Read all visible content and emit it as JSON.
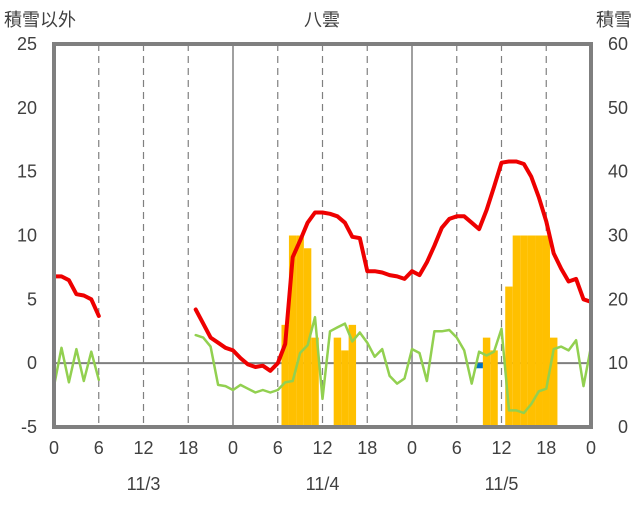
{
  "chart_data": {
    "type": "bar+line",
    "title": "八雲",
    "left_axis_label": "積雪以外",
    "right_axis_label": "積雪",
    "left_ylim": [
      -5,
      25
    ],
    "left_ticks": [
      -5,
      0,
      5,
      10,
      15,
      20,
      25
    ],
    "right_ylim": [
      0,
      60
    ],
    "right_ticks": [
      0,
      10,
      20,
      30,
      40,
      50,
      60
    ],
    "x_range_hours": [
      0,
      72
    ],
    "x_tick_labels": [
      "0",
      "6",
      "12",
      "18",
      "0",
      "6",
      "12",
      "18",
      "0",
      "6",
      "12",
      "18",
      "0"
    ],
    "date_labels": [
      "11/3",
      "11/4",
      "11/5"
    ],
    "grid": "vertical every 6h (dashed at 6/12/18h, solid at day boundaries)",
    "colors": {
      "red_line": "#ee0000",
      "green_line": "#92d050",
      "orange_bar": "#ffc000",
      "blue_bar": "#0070c0",
      "purple_line": "#7030a0",
      "frame": "#7f7f7f"
    },
    "red_series": {
      "axis": "left",
      "segments": [
        [
          [
            0,
            6.8
          ],
          [
            1,
            6.8
          ],
          [
            2,
            6.5
          ],
          [
            3,
            5.4
          ],
          [
            4,
            5.3
          ],
          [
            5,
            5.0
          ],
          [
            6,
            3.7
          ]
        ],
        [
          [
            19,
            4.2
          ],
          [
            20,
            3.1
          ],
          [
            21,
            2.0
          ],
          [
            22,
            1.6
          ],
          [
            23,
            1.2
          ],
          [
            24,
            1.0
          ],
          [
            25,
            0.4
          ],
          [
            26,
            -0.1
          ],
          [
            27,
            -0.3
          ],
          [
            28,
            -0.2
          ],
          [
            29,
            -0.6
          ],
          [
            30,
            0.0
          ],
          [
            31,
            1.5
          ],
          [
            32,
            8.3
          ],
          [
            33,
            9.6
          ],
          [
            34,
            11.0
          ],
          [
            35,
            11.8
          ],
          [
            36,
            11.8
          ],
          [
            37,
            11.7
          ],
          [
            38,
            11.5
          ],
          [
            39,
            11.0
          ],
          [
            40,
            9.9
          ],
          [
            41,
            9.8
          ],
          [
            42,
            7.2
          ],
          [
            43,
            7.2
          ],
          [
            44,
            7.1
          ],
          [
            45,
            6.9
          ],
          [
            46,
            6.8
          ],
          [
            47,
            6.6
          ],
          [
            48,
            7.2
          ],
          [
            49,
            6.9
          ],
          [
            50,
            7.9
          ],
          [
            51,
            9.2
          ],
          [
            52,
            10.6
          ],
          [
            53,
            11.3
          ],
          [
            54,
            11.5
          ],
          [
            55,
            11.5
          ],
          [
            56,
            11.0
          ],
          [
            57,
            10.5
          ],
          [
            58,
            12.0
          ],
          [
            59,
            13.8
          ],
          [
            60,
            15.7
          ],
          [
            61,
            15.8
          ],
          [
            62,
            15.8
          ],
          [
            63,
            15.6
          ],
          [
            64,
            14.6
          ],
          [
            65,
            13.0
          ],
          [
            66,
            11.1
          ],
          [
            67,
            8.6
          ],
          [
            68,
            7.4
          ],
          [
            69,
            6.4
          ],
          [
            70,
            6.6
          ],
          [
            71,
            5.0
          ],
          [
            72,
            4.8
          ]
        ]
      ]
    },
    "green_series": {
      "axis": "left",
      "segments": [
        [
          [
            0,
            -1.8
          ],
          [
            1,
            1.2
          ],
          [
            2,
            -1.5
          ],
          [
            3,
            1.1
          ],
          [
            4,
            -1.4
          ],
          [
            5,
            0.9
          ],
          [
            6,
            -1.3
          ]
        ],
        [
          [
            19,
            2.2
          ],
          [
            20,
            2.0
          ],
          [
            21,
            1.3
          ],
          [
            22,
            -1.7
          ],
          [
            23,
            -1.8
          ],
          [
            24,
            -2.1
          ],
          [
            25,
            -1.7
          ],
          [
            26,
            -2.0
          ],
          [
            27,
            -2.3
          ],
          [
            28,
            -2.1
          ],
          [
            29,
            -2.3
          ],
          [
            30,
            -2.1
          ],
          [
            31,
            -1.5
          ],
          [
            32,
            -1.4
          ],
          [
            33,
            0.8
          ],
          [
            34,
            1.4
          ],
          [
            35,
            3.6
          ],
          [
            36,
            -2.8
          ],
          [
            37,
            2.5
          ],
          [
            38,
            2.8
          ],
          [
            39,
            3.1
          ],
          [
            40,
            1.7
          ],
          [
            41,
            2.4
          ],
          [
            42,
            1.6
          ],
          [
            43,
            0.5
          ],
          [
            44,
            1.1
          ],
          [
            45,
            -1.0
          ],
          [
            46,
            -1.6
          ],
          [
            47,
            -1.2
          ],
          [
            48,
            1.1
          ],
          [
            49,
            0.8
          ],
          [
            50,
            -1.4
          ],
          [
            51,
            2.5
          ],
          [
            52,
            2.5
          ],
          [
            53,
            2.6
          ],
          [
            54,
            2.0
          ],
          [
            55,
            1.0
          ],
          [
            56,
            -1.6
          ],
          [
            57,
            0.9
          ],
          [
            58,
            0.6
          ],
          [
            59,
            0.9
          ],
          [
            60,
            2.7
          ],
          [
            61,
            -3.7
          ],
          [
            62,
            -3.7
          ],
          [
            63,
            -3.9
          ],
          [
            64,
            -3.2
          ],
          [
            65,
            -2.2
          ],
          [
            66,
            -2.0
          ],
          [
            67,
            1.1
          ],
          [
            68,
            1.3
          ],
          [
            69,
            1.0
          ],
          [
            70,
            1.8
          ],
          [
            71,
            -1.8
          ],
          [
            72,
            1.3
          ]
        ]
      ]
    },
    "snow_bars": {
      "axis": "right",
      "hours": [
        31,
        32,
        33,
        34,
        35,
        38,
        39,
        40,
        58,
        59,
        61,
        62,
        63,
        64,
        65,
        66,
        67
      ],
      "values": [
        16,
        30,
        30,
        28,
        14,
        14,
        12,
        16,
        14,
        12,
        22,
        30,
        30,
        30,
        30,
        30,
        14
      ]
    },
    "blue_bars": {
      "axis": "left",
      "hours": [
        57
      ],
      "values": [
        -0.4
      ]
    },
    "purple_line": {
      "axis": "left",
      "segments": [
        [
          [
            0,
            -5
          ],
          [
            6,
            -5
          ]
        ],
        [
          [
            19,
            -5
          ],
          [
            72,
            -5
          ]
        ]
      ]
    }
  }
}
